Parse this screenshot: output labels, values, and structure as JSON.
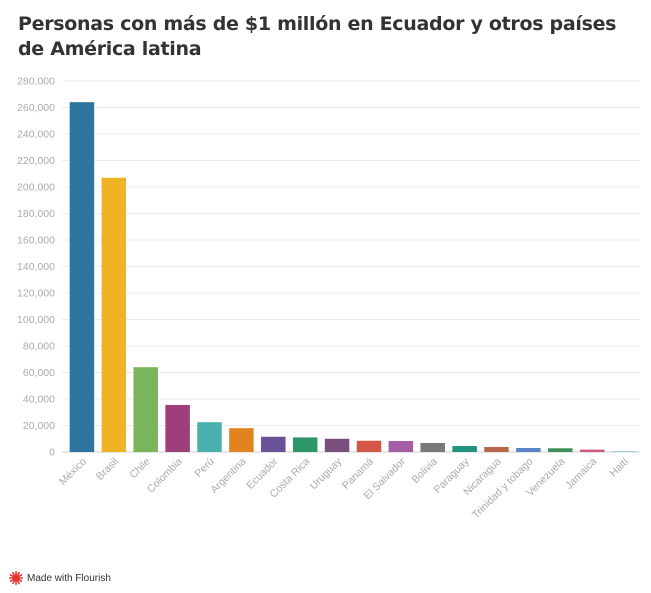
{
  "chart_data": {
    "type": "bar",
    "title": "Personas con más de $1 millón en Ecuador y otros países de América latina",
    "xlabel": "",
    "ylabel": "",
    "ylim": [
      0,
      280000
    ],
    "yticks": [
      0,
      20000,
      40000,
      60000,
      80000,
      100000,
      120000,
      140000,
      160000,
      180000,
      200000,
      220000,
      240000,
      260000,
      280000
    ],
    "ytick_labels": [
      "0",
      "20,000",
      "40,000",
      "60,000",
      "80,000",
      "100,000",
      "120,000",
      "140,000",
      "160,000",
      "180,000",
      "200,000",
      "220,000",
      "240,000",
      "260,000",
      "280,000"
    ],
    "grid": true,
    "categories": [
      "México",
      "Brasil",
      "Chile",
      "Colombia",
      "Perú",
      "Argentina",
      "Ecuador",
      "Costa Rica",
      "Uruguay",
      "Panamá",
      "El Salvador",
      "Bolivia",
      "Paraguay",
      "Nicaragua",
      "Trinidad y tobago",
      "Venezuela",
      "Jamaica",
      "Haití"
    ],
    "values": [
      264000,
      207000,
      64000,
      35500,
      22500,
      18000,
      11500,
      11000,
      10000,
      8500,
      8300,
      6800,
      4500,
      3800,
      3000,
      2800,
      1800,
      800
    ],
    "colors": [
      "#2f74a1",
      "#f0b323",
      "#7ab55c",
      "#9e3f7c",
      "#4ab0ad",
      "#e38320",
      "#6a5299",
      "#2c9669",
      "#7b4f7e",
      "#d4564a",
      "#a45ea6",
      "#787878",
      "#219180",
      "#b5684a",
      "#5b83c5",
      "#3c8f5a",
      "#c75a7a",
      "#9ad7d9"
    ]
  },
  "footer": {
    "brand_text": "Made with Flourish",
    "logo_icon": "flourish-logo-icon",
    "logo_color": "#e4312b"
  }
}
